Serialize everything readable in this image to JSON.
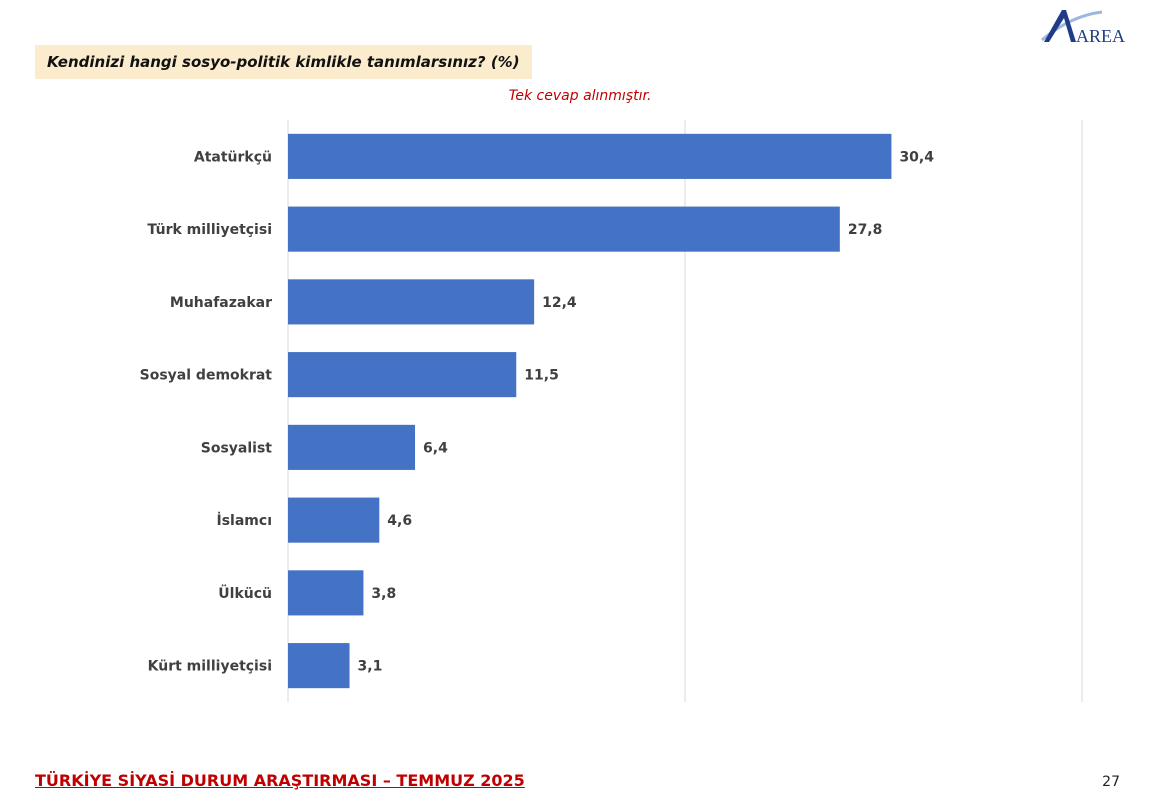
{
  "header": {
    "question": "Kendinizi hangi sosyo-politik kimlikle tanımlarsınız? (%)",
    "note": "Tek cevap alınmıştır.",
    "logo_text": "AREA"
  },
  "footer": {
    "title": "TÜRKİYE SİYASİ DURUM ARAŞTIRMASI – TEMMUZ 2025",
    "page_number": "27"
  },
  "colors": {
    "bar": "#4472c4",
    "note": "#c00000",
    "question_bg": "#fbeccd",
    "footer": "#c00000",
    "logo_blue": "#1f3c88"
  },
  "chart_data": {
    "type": "bar",
    "orientation": "horizontal",
    "title": "Kendinizi hangi sosyo-politik kimlikle tanımlarsınız? (%)",
    "categories": [
      "Atatürkçü",
      "Türk milliyetçisi",
      "Muhafazakar",
      "Sosyal demokrat",
      "Sosyalist",
      "İslamcı",
      "Ülkücü",
      "Kürt milliyetçisi"
    ],
    "values": [
      30.4,
      27.8,
      12.4,
      11.5,
      6.4,
      4.6,
      3.8,
      3.1
    ],
    "value_labels": [
      "30,4",
      "27,8",
      "12,4",
      "11,5",
      "6,4",
      "4,6",
      "3,8",
      "3,1"
    ],
    "xlim": [
      0,
      40
    ],
    "gridlines": [
      0,
      20,
      40
    ],
    "grid": true
  }
}
